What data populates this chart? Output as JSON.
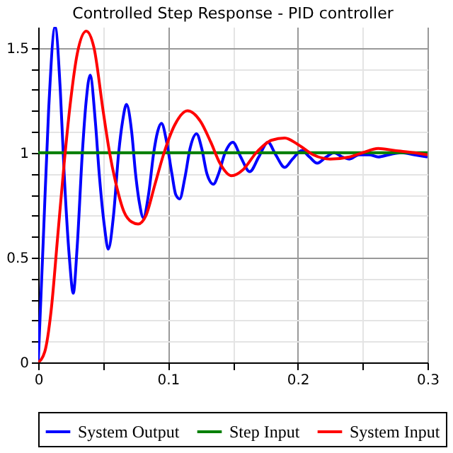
{
  "chart_data": {
    "type": "line",
    "title": "Controlled Step Response - PID controller",
    "xlim": [
      0,
      0.3
    ],
    "ylim": [
      0,
      1.6
    ],
    "xticks": [
      0,
      {
        "value": 0.05,
        "label": null
      },
      0.1,
      {
        "value": 0.15,
        "label": null
      },
      0.2,
      {
        "value": 0.25,
        "label": null
      },
      0.3
    ],
    "yticks": [
      0,
      {
        "value": 0.1,
        "label": null
      },
      {
        "value": 0.2,
        "label": null
      },
      {
        "value": 0.3,
        "label": null
      },
      {
        "value": 0.4,
        "label": null
      },
      0.5,
      {
        "value": 0.6,
        "label": null
      },
      {
        "value": 0.7,
        "label": null
      },
      {
        "value": 0.8,
        "label": null
      },
      {
        "value": 0.9,
        "label": null
      },
      1,
      {
        "value": 1.1,
        "label": null
      },
      {
        "value": 1.2,
        "label": null
      },
      {
        "value": 1.3,
        "label": null
      },
      {
        "value": 1.4,
        "label": null
      },
      1.5
    ],
    "grid": true,
    "legend": "bottom",
    "series": [
      {
        "name": "System Output",
        "color": "#0000ff",
        "x": [
          0,
          0.004,
          0.008,
          0.013,
          0.017,
          0.02,
          0.024,
          0.027,
          0.03,
          0.034,
          0.037,
          0.04,
          0.044,
          0.047,
          0.051,
          0.054,
          0.058,
          0.062,
          0.065,
          0.068,
          0.072,
          0.075,
          0.078,
          0.081,
          0.085,
          0.089,
          0.092,
          0.095,
          0.099,
          0.103,
          0.106,
          0.109,
          0.113,
          0.117,
          0.122,
          0.126,
          0.13,
          0.135,
          0.139,
          0.144,
          0.15,
          0.156,
          0.163,
          0.17,
          0.177,
          0.183,
          0.19,
          0.196,
          0.203,
          0.209,
          0.215,
          0.222,
          0.228,
          0.234,
          0.24,
          0.247,
          0.255,
          0.262,
          0.27,
          0.28,
          0.29,
          0.3
        ],
        "values": [
          0,
          0.6,
          1.2,
          1.6,
          1.3,
          0.9,
          0.5,
          0.33,
          0.55,
          1.0,
          1.25,
          1.37,
          1.15,
          0.9,
          0.65,
          0.54,
          0.7,
          1.0,
          1.15,
          1.23,
          1.1,
          0.9,
          0.76,
          0.69,
          0.8,
          1.0,
          1.1,
          1.14,
          1.05,
          0.9,
          0.8,
          0.78,
          0.88,
          1.02,
          1.09,
          1.02,
          0.9,
          0.85,
          0.9,
          1.0,
          1.05,
          0.98,
          0.91,
          0.98,
          1.05,
          0.99,
          0.93,
          0.97,
          1.01,
          0.98,
          0.95,
          0.98,
          1.0,
          0.98,
          0.97,
          0.99,
          0.99,
          0.98,
          0.99,
          1.0,
          0.99,
          0.98
        ]
      },
      {
        "name": "Step Input",
        "color": "#008000",
        "x": [
          0,
          0.3
        ],
        "values": [
          1,
          1
        ]
      },
      {
        "name": "System Input",
        "color": "#ff0000",
        "x": [
          0,
          0.005,
          0.01,
          0.015,
          0.02,
          0.025,
          0.03,
          0.037,
          0.043,
          0.05,
          0.055,
          0.06,
          0.066,
          0.072,
          0.077,
          0.083,
          0.09,
          0.097,
          0.105,
          0.115,
          0.125,
          0.133,
          0.14,
          0.149,
          0.158,
          0.168,
          0.18,
          0.19,
          0.2,
          0.212,
          0.225,
          0.24,
          0.25,
          0.262,
          0.275,
          0.29,
          0.3
        ],
        "values": [
          0,
          0.05,
          0.25,
          0.6,
          0.95,
          1.25,
          1.47,
          1.58,
          1.5,
          1.2,
          1.0,
          0.85,
          0.72,
          0.67,
          0.66,
          0.7,
          0.85,
          1.0,
          1.13,
          1.2,
          1.15,
          1.05,
          0.95,
          0.89,
          0.92,
          1.0,
          1.06,
          1.07,
          1.04,
          0.99,
          0.97,
          0.98,
          1.0,
          1.02,
          1.01,
          1.0,
          0.99
        ]
      }
    ]
  }
}
